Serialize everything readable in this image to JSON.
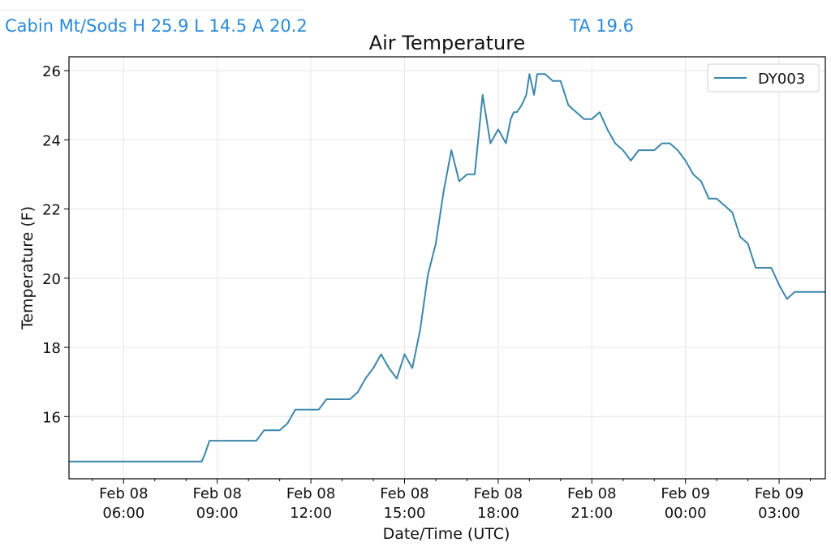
{
  "header": {
    "station": "Cabin Mt/Sods H 25.9 L 14.5 A 20.2",
    "ta": "TA 19.6"
  },
  "chart_data": {
    "type": "line",
    "title": "Air Temperature",
    "xlabel": "Date/Time (UTC)",
    "ylabel": "Temperature (F)",
    "grid": true,
    "legend_position": "top-right",
    "series_color": "#3c87ab",
    "xlim_hours": [
      4.25,
      28.48
    ],
    "ylim": [
      14.2,
      26.4
    ],
    "x_ticks": [
      {
        "h": 6,
        "line1": "Feb 08",
        "line2": "06:00"
      },
      {
        "h": 9,
        "line1": "Feb 08",
        "line2": "09:00"
      },
      {
        "h": 12,
        "line1": "Feb 08",
        "line2": "12:00"
      },
      {
        "h": 15,
        "line1": "Feb 08",
        "line2": "15:00"
      },
      {
        "h": 18,
        "line1": "Feb 08",
        "line2": "18:00"
      },
      {
        "h": 21,
        "line1": "Feb 08",
        "line2": "21:00"
      },
      {
        "h": 24,
        "line1": "Feb 09",
        "line2": "00:00"
      },
      {
        "h": 27,
        "line1": "Feb 09",
        "line2": "03:00"
      }
    ],
    "y_ticks": [
      16,
      18,
      20,
      22,
      24,
      26
    ],
    "series": [
      {
        "name": "DY003",
        "x": [
          4.25,
          8.5,
          8.6,
          8.75,
          9.0,
          9.25,
          9.5,
          9.75,
          10.0,
          10.25,
          10.5,
          10.75,
          11.0,
          11.25,
          11.5,
          11.75,
          12.0,
          12.15,
          12.25,
          12.5,
          12.75,
          13.0,
          13.25,
          13.5,
          13.75,
          14.0,
          14.25,
          14.5,
          14.75,
          15.0,
          15.25,
          15.5,
          15.75,
          16.0,
          16.25,
          16.5,
          16.75,
          17.0,
          17.25,
          17.5,
          17.75,
          18.0,
          18.25,
          18.4,
          18.5,
          18.6,
          18.75,
          18.9,
          19.0,
          19.15,
          19.25,
          19.5,
          19.75,
          20.0,
          20.25,
          20.5,
          20.75,
          21.0,
          21.25,
          21.5,
          21.75,
          22.0,
          22.25,
          22.5,
          22.75,
          23.0,
          23.25,
          23.5,
          23.75,
          24.0,
          24.25,
          24.5,
          24.75,
          25.0,
          25.25,
          25.5,
          25.75,
          26.0,
          26.25,
          26.5,
          26.75,
          27.0,
          27.25,
          27.5,
          27.75,
          28.0,
          28.25,
          28.48
        ],
        "y": [
          14.7,
          14.7,
          14.9,
          15.3,
          15.3,
          15.3,
          15.3,
          15.3,
          15.3,
          15.3,
          15.6,
          15.6,
          15.6,
          15.8,
          16.2,
          16.2,
          16.2,
          16.2,
          16.2,
          16.5,
          16.5,
          16.5,
          16.5,
          16.7,
          17.1,
          17.4,
          17.8,
          17.4,
          17.1,
          17.8,
          17.4,
          18.5,
          20.1,
          21.0,
          22.5,
          23.7,
          22.8,
          23.0,
          23.0,
          25.3,
          23.9,
          24.3,
          23.9,
          24.6,
          24.8,
          24.8,
          25.0,
          25.3,
          25.9,
          25.3,
          25.9,
          25.9,
          25.7,
          25.7,
          25.0,
          24.8,
          24.6,
          24.6,
          24.8,
          24.3,
          23.9,
          23.7,
          23.4,
          23.7,
          23.7,
          23.7,
          23.9,
          23.9,
          23.7,
          23.4,
          23.0,
          22.8,
          22.3,
          22.3,
          22.1,
          21.9,
          21.2,
          21.0,
          20.3,
          20.3,
          20.3,
          19.8,
          19.4,
          19.6,
          19.6,
          19.6,
          19.6,
          19.6
        ]
      }
    ]
  }
}
